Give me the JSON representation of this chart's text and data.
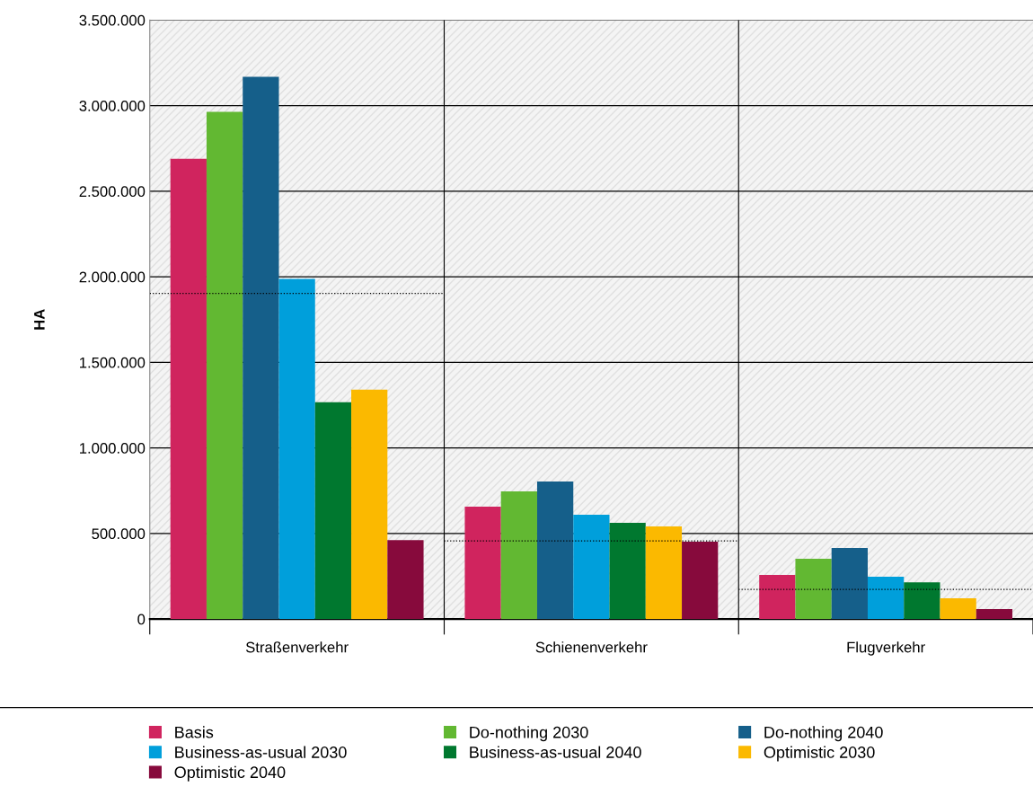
{
  "chart_data": {
    "type": "bar",
    "ylabel": "HA",
    "categories": [
      "Straßenverkehr",
      "Schienenverkehr",
      "Flugverkehr"
    ],
    "series": [
      {
        "name": "Basis",
        "color": "#d0245e",
        "values": [
          2690000,
          657000,
          258000
        ]
      },
      {
        "name": "Do-nothing 2030",
        "color": "#62b832",
        "values": [
          2964000,
          746000,
          352000
        ]
      },
      {
        "name": "Do-nothing 2040",
        "color": "#155f8a",
        "values": [
          3169000,
          804000,
          415000
        ]
      },
      {
        "name": "Business-as-usual 2030",
        "color": "#009fdb",
        "values": [
          1987000,
          610000,
          247000
        ]
      },
      {
        "name": "Business-as-usual 2040",
        "color": "#00782f",
        "values": [
          1267000,
          562000,
          215000
        ]
      },
      {
        "name": "Optimistic 2030",
        "color": "#fbb900",
        "values": [
          1340000,
          541000,
          121000
        ]
      },
      {
        "name": "Optimistic 2040",
        "color": "#870a3c",
        "values": [
          462000,
          452000,
          58000
        ]
      }
    ],
    "ref_lines": [
      {
        "axis": "y",
        "value": 1903000,
        "color": "#000000",
        "line_style": "dotted"
      },
      {
        "axis": "y",
        "value": 457000,
        "color": "#000000",
        "line_style": "dotted"
      },
      {
        "axis": "y",
        "value": 173000,
        "color": "#000000",
        "line_style": "dotted"
      }
    ],
    "ylim": [
      0,
      3500000
    ],
    "yticks": [
      {
        "value": 0,
        "label": "0"
      },
      {
        "value": 500000,
        "label": "500.000"
      },
      {
        "value": 1000000,
        "label": "1.000.000"
      },
      {
        "value": 1500000,
        "label": "1.500.000"
      },
      {
        "value": 2000000,
        "label": "2.000.000"
      },
      {
        "value": 2500000,
        "label": "2.500.000"
      },
      {
        "value": 3000000,
        "label": "3.000.000"
      },
      {
        "value": 3500000,
        "label": "3.500.000"
      }
    ],
    "grid": true,
    "legend": "bottom"
  }
}
